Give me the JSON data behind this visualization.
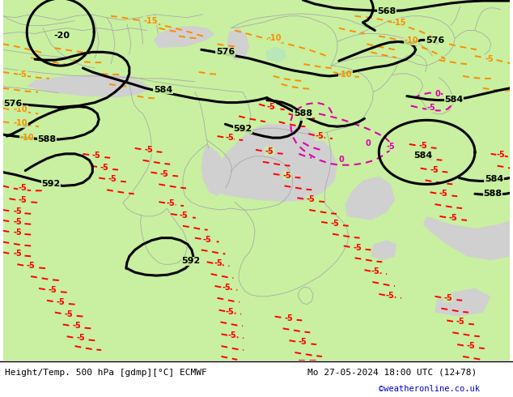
{
  "title_left": "Height/Temp. 500 hPa [gdmp][°C] ECMWF",
  "title_right": "Mo 27-05-2024 18:00 UTC (12+78)",
  "copyright": "©weatheronline.co.uk",
  "land_color": "#c8f0a0",
  "sea_color": "#d0d0d0",
  "border_color": "#aaaaaa",
  "height_contour_color": "#000000",
  "temp_orange_color": "#ff8c00",
  "temp_red_color": "#ff0000",
  "temp_magenta_color": "#dd00aa",
  "fig_width": 6.34,
  "fig_height": 4.9,
  "dpi": 100
}
